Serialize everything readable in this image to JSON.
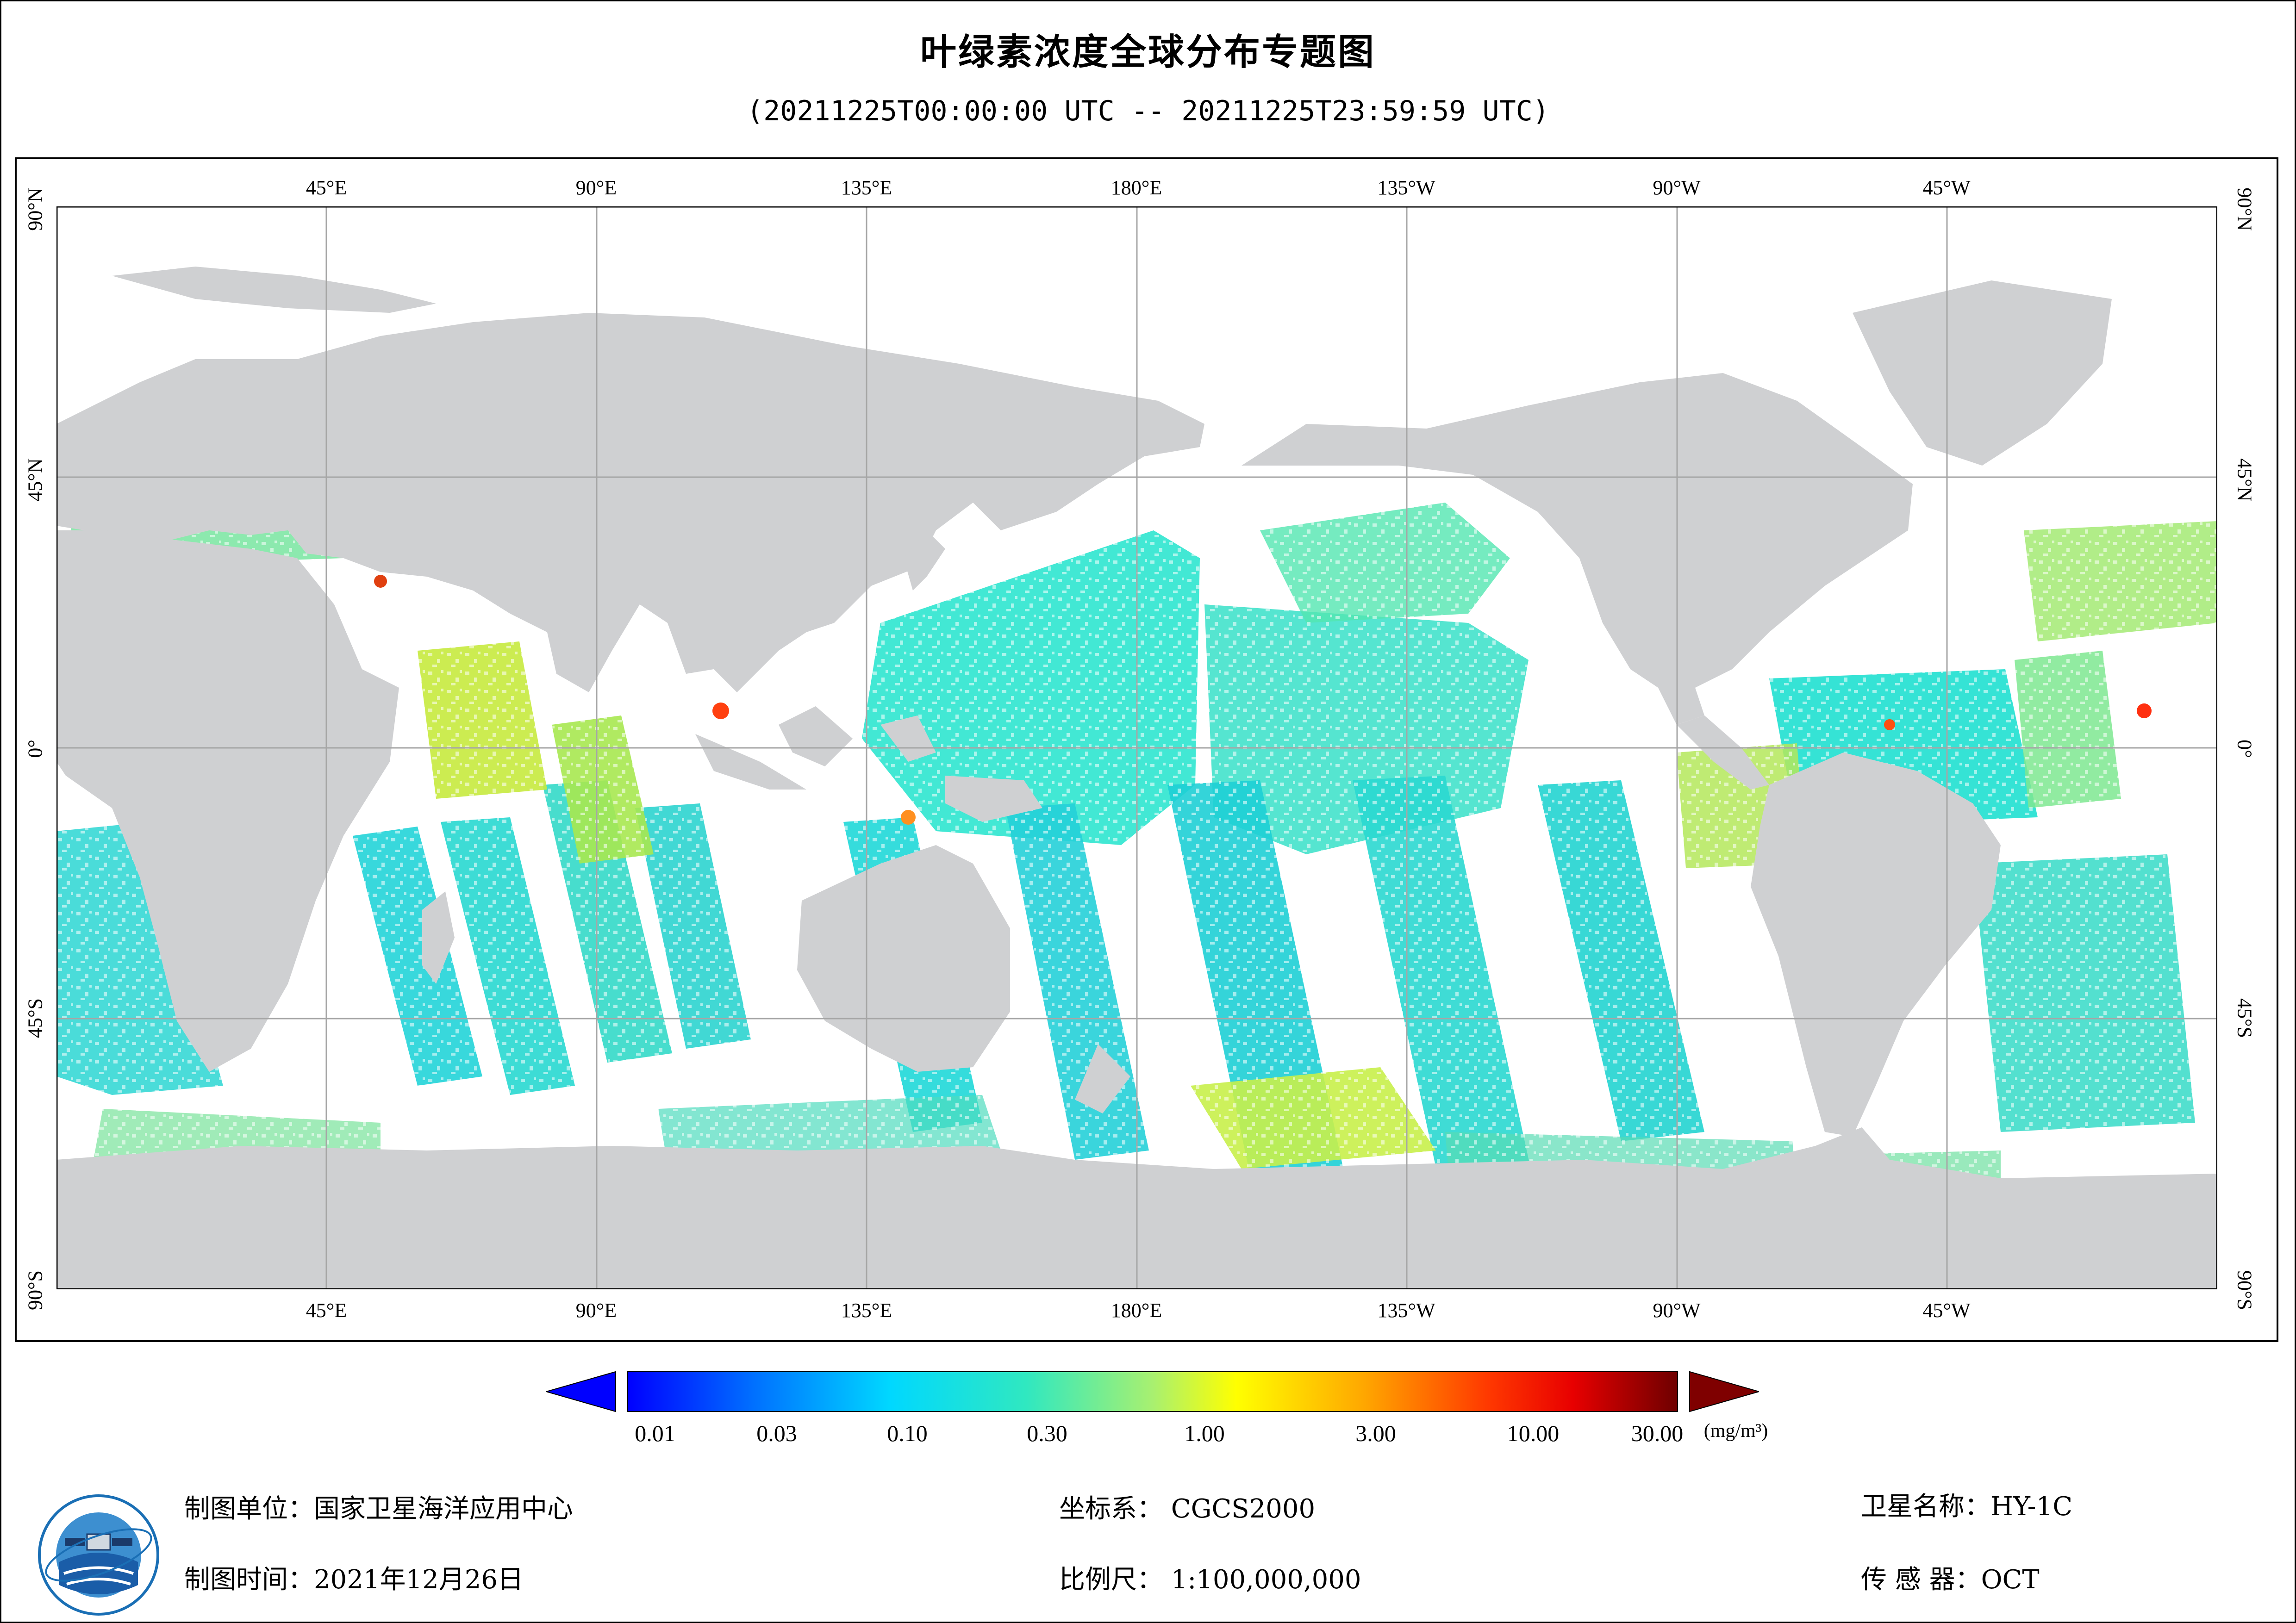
{
  "header": {
    "title": "叶绿素浓度全球分布专题图",
    "subtitle": "(20211225T00:00:00 UTC -- 20211225T23:59:59 UTC)"
  },
  "map": {
    "lon_labels": [
      "45°E",
      "90°E",
      "135°E",
      "180°E",
      "135°W",
      "90°W",
      "45°W"
    ],
    "lat_labels": [
      "90°N",
      "45°N",
      "0°",
      "45°S",
      "90°S"
    ],
    "colors": {
      "land": "#cfd0d2",
      "ocean_nodata": "#ffffff",
      "grid": "#a6a6a6"
    },
    "data_overlay": "chlorophyll-a concentration swaths (HY-1C OCT)"
  },
  "colorbar": {
    "tick_labels": [
      "0.01",
      "0.03",
      "0.10",
      "0.30",
      "1.00",
      "3.00",
      "10.00",
      "30.00"
    ],
    "unit": "(mg/m³)",
    "stops": [
      "#0000ff",
      "#0066ff",
      "#00ccff",
      "#22e0d0",
      "#88f088",
      "#ffff00",
      "#ffb000",
      "#ff4000",
      "#ff0000",
      "#7f0000"
    ],
    "under_color": "#0000ff",
    "over_color": "#7f0000"
  },
  "footer": {
    "producer": "制图单位：国家卫星海洋应用中心",
    "date": "制图时间：2021年12月26日",
    "crs": "坐标系：  CGCS2000",
    "scale": "比例尺：  1:100,000,000",
    "satellite": "卫星名称：HY-1C",
    "sensor": "传 感 器：OCT"
  },
  "logo": {
    "icon": "nsoas-logo"
  }
}
